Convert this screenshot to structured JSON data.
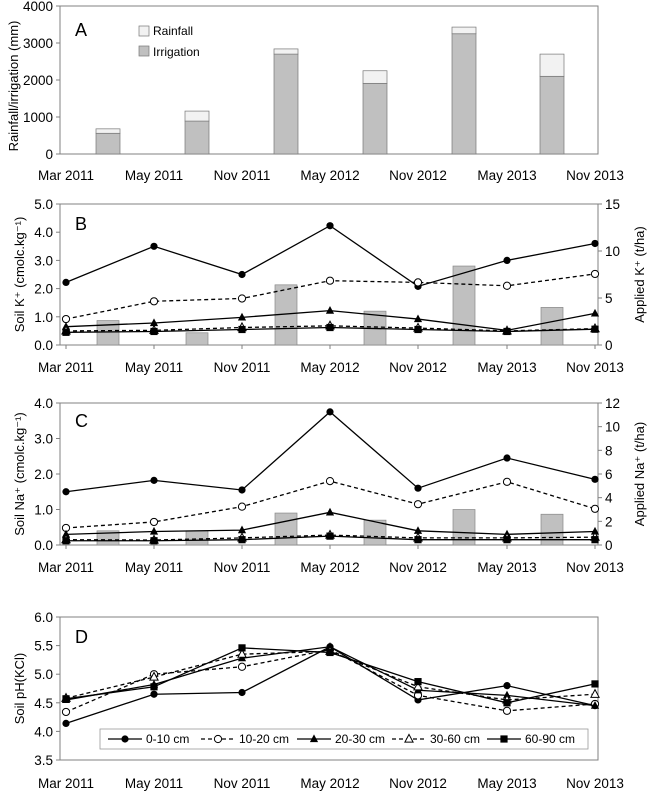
{
  "chart_data": [
    {
      "panel": "A",
      "type": "bar",
      "stacked": true,
      "title": "",
      "xlabel": "",
      "ylabel": "Rainfall/irrigation (mm)",
      "ylim": [
        0,
        4000
      ],
      "yticks": [
        "0",
        "1000",
        "2000",
        "3000",
        "4000"
      ],
      "xtick_labels": [
        "Mar 2011",
        "May 2011",
        "Nov 2011",
        "May 2012",
        "Nov 2012",
        "May 2013",
        "Nov 2013"
      ],
      "series": [
        {
          "name": "Irrigation",
          "color": "#c0c0c0",
          "values": [
            560,
            890,
            2700,
            1910,
            3250,
            2100
          ]
        },
        {
          "name": "Rainfall",
          "color": "#f2f2f2",
          "values": [
            120,
            270,
            140,
            340,
            180,
            600
          ]
        }
      ],
      "legend": [
        "Rainfall",
        "Irrigation"
      ]
    },
    {
      "panel": "B",
      "type": "line",
      "ylabel": "Soil K⁺ (cmolc.kg⁻¹)",
      "y2label": "Applied K⁺ (t/ha)",
      "ylim": [
        0,
        5
      ],
      "y2lim": [
        0,
        15
      ],
      "yticks": [
        "0.0",
        "1.0",
        "2.0",
        "3.0",
        "4.0",
        "5.0"
      ],
      "y2ticks": [
        "0",
        "5",
        "10",
        "15"
      ],
      "xtick_labels": [
        "Mar 2011",
        "May 2011",
        "Nov 2011",
        "May 2012",
        "Nov 2012",
        "May 2013",
        "Nov 2013"
      ],
      "series": [
        {
          "name": "0-10 cm",
          "marker": "filled-circle",
          "dash": "",
          "values": [
            2.22,
            3.5,
            2.5,
            4.23,
            2.08,
            3.0,
            3.6
          ]
        },
        {
          "name": "10-20 cm",
          "marker": "open-circle",
          "dash": "4,3",
          "values": [
            0.92,
            1.55,
            1.65,
            2.28,
            2.22,
            2.1,
            2.52
          ]
        },
        {
          "name": "20-30 cm",
          "marker": "filled-triangle",
          "dash": "",
          "values": [
            0.65,
            0.78,
            0.98,
            1.22,
            0.92,
            0.52,
            1.12
          ]
        },
        {
          "name": "30-60 cm",
          "marker": "open-triangle",
          "dash": "4,3",
          "values": [
            0.5,
            0.52,
            0.62,
            0.68,
            0.6,
            0.5,
            0.58
          ]
        },
        {
          "name": "60-90 cm",
          "marker": "filled-square",
          "dash": "",
          "values": [
            0.45,
            0.48,
            0.55,
            0.62,
            0.55,
            0.48,
            0.56
          ]
        }
      ],
      "bars": {
        "name": "Applied K⁺",
        "axis": "right",
        "values": [
          2.6,
          1.3,
          6.4,
          3.6,
          8.4,
          4.0
        ]
      }
    },
    {
      "panel": "C",
      "type": "line",
      "ylabel": "Soil Na⁺ (cmolc.kg⁻¹)",
      "y2label": "Applied Na⁺ (t/ha)",
      "ylim": [
        0,
        4
      ],
      "y2lim": [
        0,
        12
      ],
      "yticks": [
        "0.0",
        "1.0",
        "2.0",
        "3.0",
        "4.0"
      ],
      "y2ticks": [
        "0",
        "2",
        "4",
        "6",
        "8",
        "10",
        "12"
      ],
      "xtick_labels": [
        "Mar 2011",
        "May 2011",
        "Nov 2011",
        "May 2012",
        "Nov 2012",
        "May 2013",
        "Nov 2013"
      ],
      "series": [
        {
          "name": "0-10 cm",
          "marker": "filled-circle",
          "dash": "",
          "values": [
            1.5,
            1.82,
            1.55,
            3.75,
            1.6,
            2.45,
            1.85
          ]
        },
        {
          "name": "10-20 cm",
          "marker": "open-circle",
          "dash": "4,3",
          "values": [
            0.48,
            0.65,
            1.08,
            1.8,
            1.15,
            1.78,
            1.02
          ]
        },
        {
          "name": "20-30 cm",
          "marker": "filled-triangle",
          "dash": "",
          "values": [
            0.3,
            0.38,
            0.42,
            0.92,
            0.4,
            0.3,
            0.38
          ]
        },
        {
          "name": "30-60 cm",
          "marker": "open-triangle",
          "dash": "4,3",
          "values": [
            0.15,
            0.14,
            0.2,
            0.28,
            0.2,
            0.2,
            0.22
          ]
        },
        {
          "name": "60-90 cm",
          "marker": "filled-square",
          "dash": "",
          "values": [
            0.12,
            0.12,
            0.15,
            0.25,
            0.15,
            0.15,
            0.15
          ]
        }
      ],
      "bars": {
        "name": "Applied Na⁺",
        "axis": "right",
        "values": [
          1.2,
          1.2,
          2.7,
          2.1,
          3.0,
          2.6
        ]
      }
    },
    {
      "panel": "D",
      "type": "line",
      "ylabel": "Soil pH(KCl)",
      "ylim": [
        3.5,
        6.0
      ],
      "yticks": [
        "3.5",
        "4.0",
        "4.5",
        "5.0",
        "5.5",
        "6.0"
      ],
      "xtick_labels": [
        "Mar 2011",
        "May 2011",
        "Nov 2011",
        "May 2012",
        "Nov 2012",
        "May 2013",
        "Nov 2013"
      ],
      "series": [
        {
          "name": "0-10 cm",
          "marker": "filled-circle",
          "dash": "",
          "values": [
            4.14,
            4.65,
            4.68,
            5.48,
            4.55,
            4.8,
            4.45
          ]
        },
        {
          "name": "10-20 cm",
          "marker": "open-circle",
          "dash": "4,3",
          "values": [
            4.34,
            5.0,
            5.13,
            5.43,
            4.63,
            4.36,
            4.48
          ]
        },
        {
          "name": "20-30 cm",
          "marker": "filled-triangle",
          "dash": "",
          "values": [
            4.55,
            4.82,
            5.28,
            5.48,
            4.72,
            4.63,
            4.45
          ]
        },
        {
          "name": "30-60 cm",
          "marker": "open-triangle",
          "dash": "4,3",
          "values": [
            4.58,
            4.95,
            5.35,
            5.4,
            4.78,
            4.55,
            4.65
          ]
        },
        {
          "name": "60-90 cm",
          "marker": "filled-square",
          "dash": "",
          "values": [
            4.57,
            4.78,
            5.46,
            5.38,
            4.87,
            4.5,
            4.83
          ]
        }
      ],
      "legend": [
        "0-10 cm",
        "10-20 cm",
        "20-30 cm",
        "30-60 cm",
        "60-90 cm"
      ]
    }
  ],
  "colors": {
    "line": "#000000",
    "bar": "#c0c0c0",
    "bar_light": "#f2f2f2",
    "frame": "#808080"
  }
}
